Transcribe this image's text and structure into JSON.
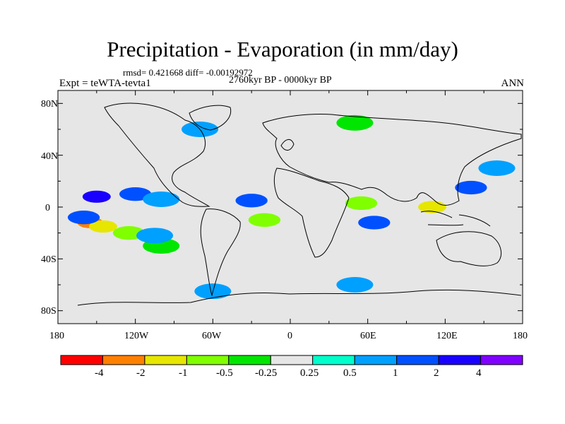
{
  "chart_data": {
    "type": "heatmap",
    "title": "Precipitation - Evaporation (in mm/day)",
    "stats_line": "rmsd= 0.421668 diff= -0.00192972",
    "period_line": "2760kyr BP - 0000kyr BP",
    "left_label": "Expt = teWTA-tevta1",
    "right_label": "ANN",
    "x_ticks": [
      "180",
      "120W",
      "60W",
      "0",
      "60E",
      "120E",
      "180"
    ],
    "y_ticks": [
      "80N",
      "40N",
      "0",
      "40S",
      "80S"
    ],
    "xlim": [
      -180,
      180
    ],
    "ylim": [
      -90,
      90
    ],
    "colorbar": {
      "labels": [
        "-4",
        "-2",
        "-1",
        "-0.5",
        "-0.25",
        "0.25",
        "0.5",
        "1",
        "2",
        "4"
      ],
      "colors": [
        "#ff0000",
        "#ff8000",
        "#e6e600",
        "#80ff00",
        "#00e600",
        "#e6e6e6",
        "#00ffcc",
        "#00a0ff",
        "#0050ff",
        "#1a00ff",
        "#7f00ff"
      ]
    },
    "fields": [
      {
        "lon": -155,
        "lat": -12,
        "value": -4
      },
      {
        "lon": -145,
        "lat": -15,
        "value": -2
      },
      {
        "lon": -125,
        "lat": -20,
        "value": -1
      },
      {
        "lon": -100,
        "lat": -30,
        "value": -0.5
      },
      {
        "lon": -150,
        "lat": 8,
        "value": 2
      },
      {
        "lon": -120,
        "lat": 10,
        "value": 1
      },
      {
        "lon": -100,
        "lat": 6,
        "value": 0.5
      },
      {
        "lon": -160,
        "lat": -8,
        "value": 1
      },
      {
        "lon": -105,
        "lat": -22,
        "value": 0.5
      },
      {
        "lon": -20,
        "lat": -10,
        "value": -1
      },
      {
        "lon": -30,
        "lat": 5,
        "value": 1
      },
      {
        "lon": 55,
        "lat": 3,
        "value": -1
      },
      {
        "lon": 65,
        "lat": -12,
        "value": 1
      },
      {
        "lon": 110,
        "lat": 0,
        "value": -2
      },
      {
        "lon": 140,
        "lat": 15,
        "value": 1
      },
      {
        "lon": 160,
        "lat": 30,
        "value": 0.5
      },
      {
        "lon": -70,
        "lat": 60,
        "value": 0.5
      },
      {
        "lon": 50,
        "lat": 65,
        "value": -0.5
      },
      {
        "lon": -60,
        "lat": -65,
        "value": 0.5
      },
      {
        "lon": 50,
        "lat": -60,
        "value": 0.5
      }
    ]
  }
}
